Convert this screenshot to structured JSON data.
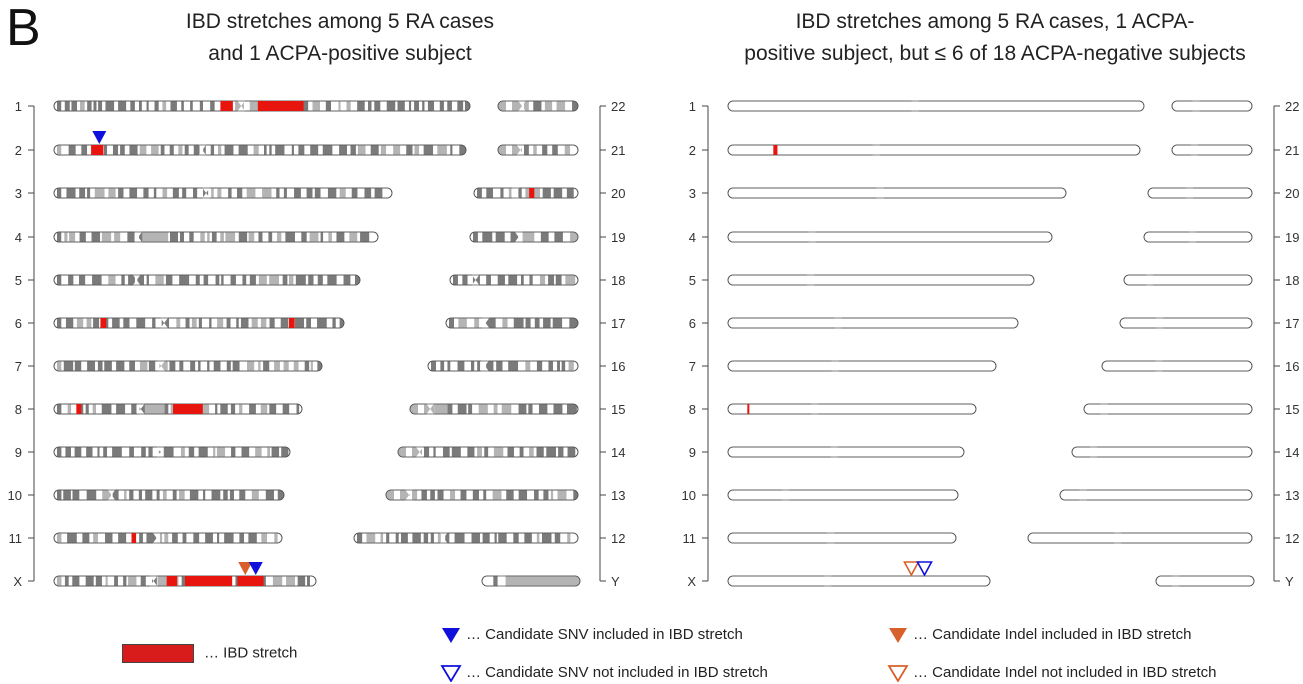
{
  "panel_label": "B",
  "panels": [
    {
      "title_line1": "IBD stretches among 5 RA cases",
      "title_line2": "and 1 ACPA-positive subject",
      "left_labels": [
        "1",
        "2",
        "3",
        "4",
        "5",
        "6",
        "7",
        "8",
        "9",
        "10",
        "11",
        "X"
      ],
      "right_labels": [
        "22",
        "21",
        "20",
        "19",
        "18",
        "17",
        "16",
        "15",
        "14",
        "13",
        "12",
        "Y"
      ],
      "ibd_stretches": [
        {
          "chromosome": "1",
          "start_frac": 0.4,
          "end_frac": 0.43
        },
        {
          "chromosome": "1",
          "start_frac": 0.49,
          "end_frac": 0.6
        },
        {
          "chromosome": "2",
          "start_frac": 0.09,
          "end_frac": 0.12
        },
        {
          "chromosome": "6",
          "start_frac": 0.16,
          "end_frac": 0.18
        },
        {
          "chromosome": "6",
          "start_frac": 0.81,
          "end_frac": 0.83
        },
        {
          "chromosome": "8",
          "start_frac": 0.09,
          "end_frac": 0.11
        },
        {
          "chromosome": "8",
          "start_frac": 0.48,
          "end_frac": 0.6
        },
        {
          "chromosome": "11",
          "start_frac": 0.34,
          "end_frac": 0.36
        },
        {
          "chromosome": "20",
          "start_frac": 0.53,
          "end_frac": 0.58
        },
        {
          "chromosome": "X",
          "start_frac": 0.43,
          "end_frac": 0.47
        },
        {
          "chromosome": "X",
          "start_frac": 0.5,
          "end_frac": 0.68
        },
        {
          "chromosome": "X",
          "start_frac": 0.7,
          "end_frac": 0.8
        }
      ],
      "markers": [
        {
          "type": "snv_included",
          "chromosome": "2",
          "pos_frac": 0.11
        },
        {
          "type": "indel_included",
          "chromosome": "X",
          "pos_frac": 0.73
        },
        {
          "type": "snv_included",
          "chromosome": "X",
          "pos_frac": 0.77
        }
      ]
    },
    {
      "title_line1": "IBD stretches among 5 RA cases, 1 ACPA-",
      "title_line2": "positive subject, but ≤ 6 of 18 ACPA-negative subjects",
      "left_labels": [
        "1",
        "2",
        "3",
        "4",
        "5",
        "6",
        "7",
        "8",
        "9",
        "10",
        "11",
        "X"
      ],
      "right_labels": [
        "22",
        "21",
        "20",
        "19",
        "18",
        "17",
        "16",
        "15",
        "14",
        "13",
        "12",
        "Y"
      ],
      "ibd_stretches": [
        {
          "chromosome": "2",
          "start_frac": 0.11,
          "end_frac": 0.12
        },
        {
          "chromosome": "8",
          "start_frac": 0.078,
          "end_frac": 0.085
        }
      ],
      "markers": [
        {
          "type": "indel_not_included",
          "chromosome": "X",
          "pos_frac": 0.7
        },
        {
          "type": "snv_not_included",
          "chromosome": "X",
          "pos_frac": 0.75
        }
      ]
    }
  ],
  "legend": {
    "ibd_stretch": "… IBD stretch",
    "snv_included": "… Candidate SNV included in IBD stretch",
    "snv_not_included": "… Candidate SNV not included in IBD stretch",
    "indel_included": "… Candidate Indel included in IBD stretch",
    "indel_not_included": "… Candidate Indel not included in IBD stretch"
  },
  "colors": {
    "ibd": "#e8150f",
    "snv": "#1010dd",
    "indel": "#d8602a",
    "band_dark": "#7a7a7a",
    "band_light": "#b4b4b4",
    "chrom_fill": "#ffffff",
    "outline": "#555555"
  }
}
